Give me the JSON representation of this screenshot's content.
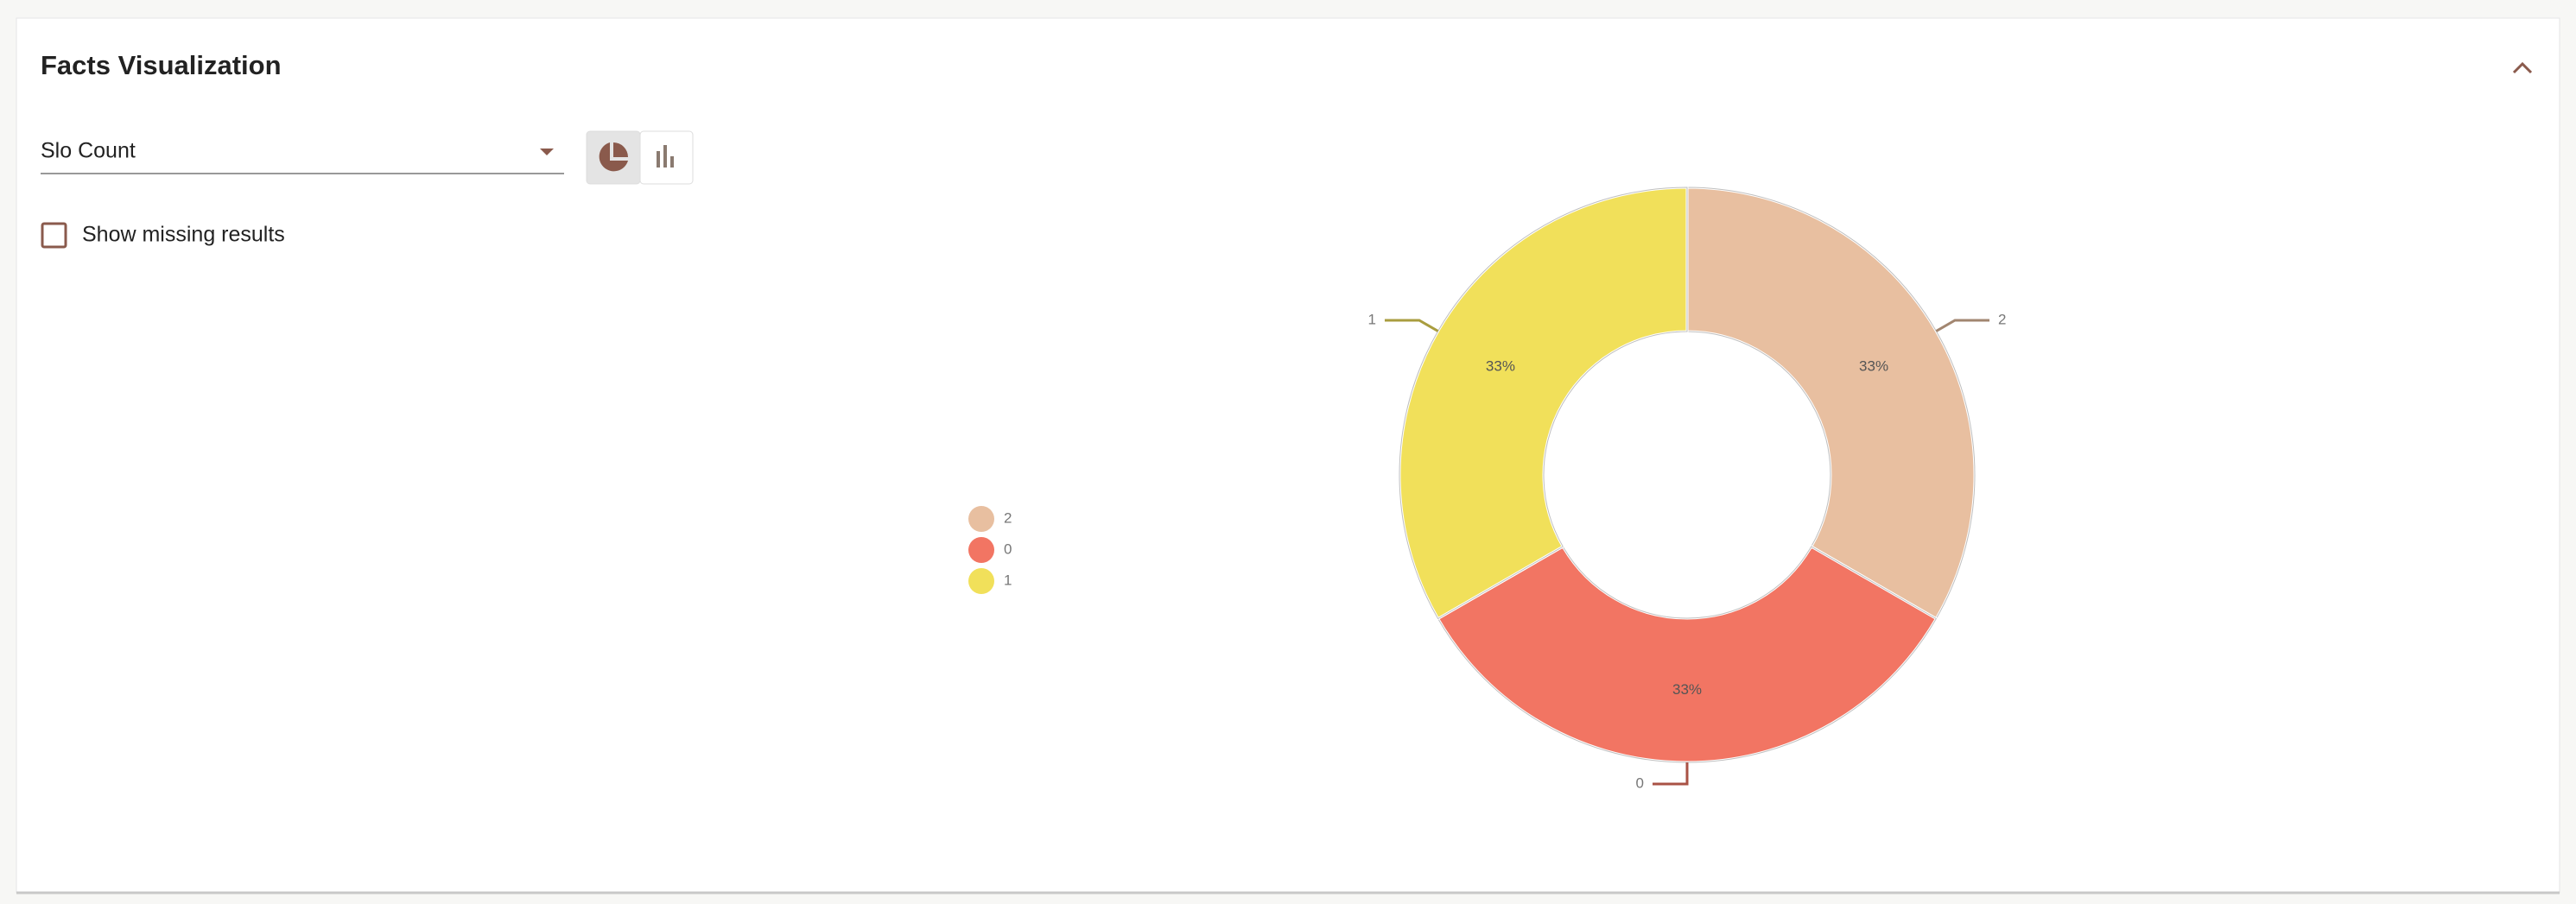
{
  "panel": {
    "title": "Facts Visualization",
    "dropdown_value": "Slo Count",
    "checkbox_label": "Show missing results"
  },
  "chart_data": {
    "type": "donut",
    "categories": [
      "2",
      "0",
      "1"
    ],
    "values": [
      33,
      33,
      33
    ],
    "value_labels": [
      "33%",
      "33%",
      "33%"
    ],
    "colors": [
      "#e8bfa0",
      "#f27563",
      "#f1e05a"
    ],
    "legend": "left"
  }
}
